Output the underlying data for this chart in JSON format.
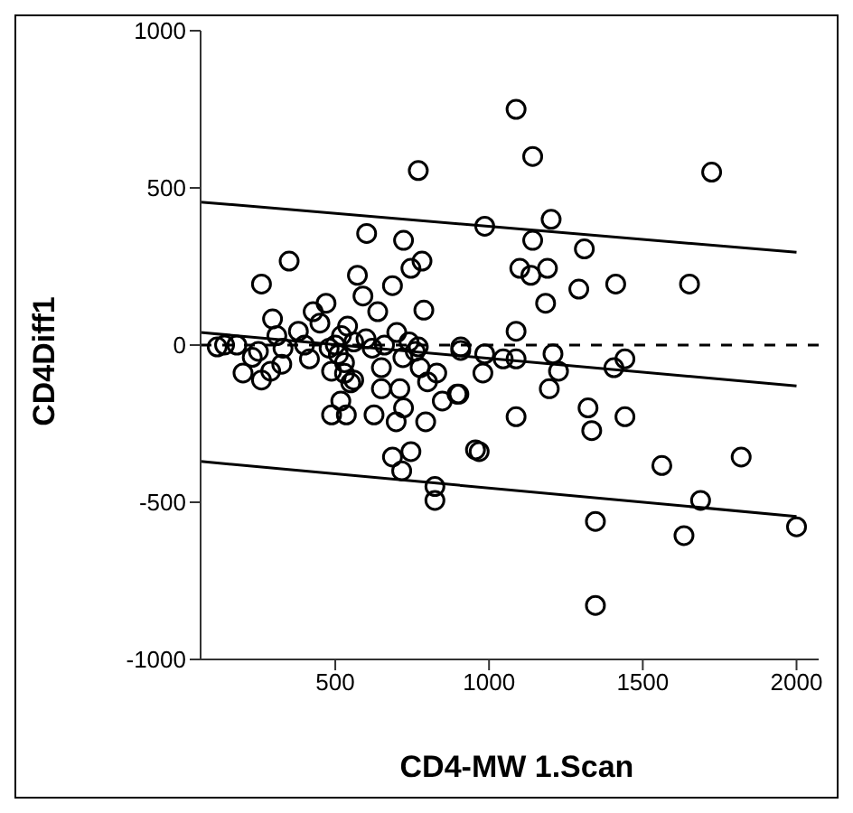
{
  "chart_data": {
    "type": "scatter",
    "xlabel": "CD4-MW 1.Scan",
    "ylabel": "CD4Diff1",
    "xlim": [
      62,
      2072
    ],
    "ylim": [
      -1000,
      1000
    ],
    "xticks": [
      500,
      1000,
      1500,
      2000
    ],
    "yticks": [
      -1000,
      -500,
      0,
      500,
      1000
    ],
    "grid": false,
    "legend": false,
    "ref_lines": [
      {
        "axis": "y",
        "value": 0,
        "color": "#000000",
        "line_style": "dashed"
      }
    ],
    "series": [
      {
        "marker": "circle",
        "color": "#000000",
        "x": [
          1088,
          1142,
          1724,
          986,
          1202,
          1142,
          1310,
          1100,
          1136,
          1190,
          1292,
          1412,
          1652,
          1184,
          1088,
          770,
          602,
          722,
          350,
          260,
          782,
          746,
          572,
          686,
          590,
          788,
          470,
          296,
          428,
          638,
          380,
          116,
          200,
          260,
          290,
          326,
          230,
          416,
          488,
          530,
          560,
          518,
          488,
          536,
          626,
          650,
          650,
          710,
          722,
          698,
          794,
          686,
          746,
          716,
          824,
          824,
          776,
          800,
          848,
          902,
          908,
          956,
          770,
          830,
          908,
          986,
          1088,
          1046,
          1208,
          1226,
          1196,
          1406,
          1442,
          980,
          896,
          1088,
          1322,
          1334,
          1442,
          968,
          1562,
          1820,
          1688,
          1346,
          1634,
          2000,
          1346,
          500,
          520,
          540,
          510,
          530,
          550,
          560,
          600,
          620,
          660,
          700,
          720,
          740,
          760,
          140,
          180,
          250,
          310,
          330,
          400,
          450,
          480
        ],
        "values": [
          750,
          600,
          550,
          378,
          400,
          333,
          306,
          244,
          222,
          244,
          178,
          194,
          194,
          133,
          44,
          555,
          355,
          333,
          267,
          194,
          267,
          244,
          222,
          189,
          156,
          111,
          133,
          83,
          106,
          106,
          44,
          -6,
          -89,
          -111,
          -83,
          -61,
          -39,
          -44,
          -83,
          -56,
          -111,
          -178,
          -222,
          -222,
          -222,
          -72,
          -139,
          -139,
          -200,
          -244,
          -244,
          -356,
          -339,
          -400,
          -450,
          -494,
          -72,
          -117,
          -178,
          -156,
          -17,
          -333,
          -6,
          -89,
          -6,
          -28,
          -44,
          -44,
          -28,
          -83,
          -139,
          -72,
          -44,
          -89,
          -156,
          -228,
          -200,
          -272,
          -228,
          -339,
          -383,
          -356,
          -494,
          -561,
          -606,
          -578,
          -828,
          0,
          30,
          60,
          -30,
          -90,
          -120,
          10,
          20,
          -10,
          0,
          40,
          -40,
          10,
          -20,
          0,
          0,
          -20,
          30,
          -10,
          0,
          70,
          -10
        ]
      },
      {
        "type": "line",
        "marker": "none",
        "color": "#000000",
        "x": [
          62,
          2000
        ],
        "values": [
          455,
          295
        ]
      },
      {
        "type": "line",
        "marker": "none",
        "color": "#000000",
        "x": [
          62,
          2000
        ],
        "values": [
          40,
          -130
        ]
      },
      {
        "type": "line",
        "marker": "none",
        "color": "#000000",
        "x": [
          62,
          2000
        ],
        "values": [
          -370,
          -545
        ]
      }
    ]
  }
}
